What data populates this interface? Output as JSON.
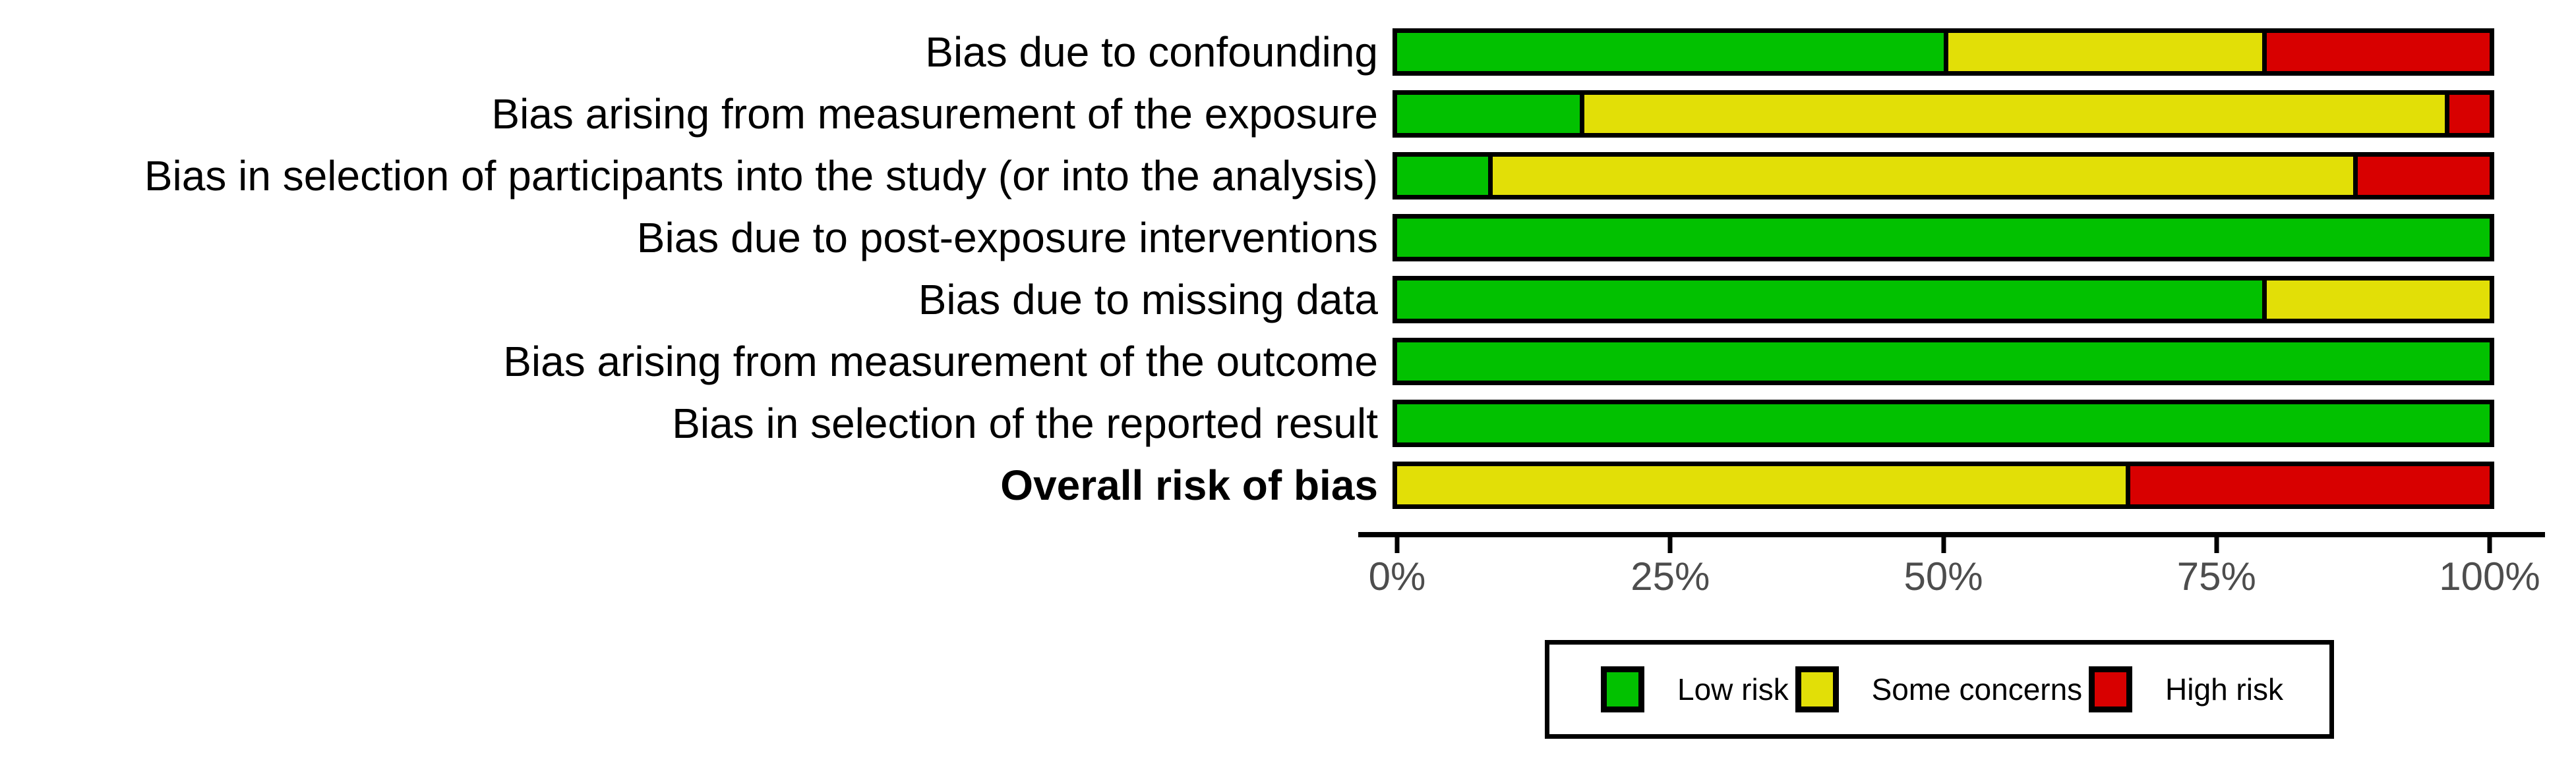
{
  "chart_data": {
    "type": "bar",
    "orientation": "horizontal_stacked",
    "unit": "percent_of_studies",
    "title": "",
    "xlabel": "",
    "ylabel": "",
    "xlim": [
      0,
      100
    ],
    "grid": false,
    "legend_position": "bottom",
    "x_ticks": [
      "0%",
      "25%",
      "50%",
      "75%",
      "100%"
    ],
    "categories": [
      {
        "label": "Bias due to confounding",
        "bold": false
      },
      {
        "label": "Bias arising from measurement of the exposure",
        "bold": false
      },
      {
        "label": "Bias in selection of participants into the study (or into the analysis)",
        "bold": false
      },
      {
        "label": "Bias due to post-exposure interventions",
        "bold": false
      },
      {
        "label": "Bias due to missing data",
        "bold": false
      },
      {
        "label": "Bias arising from measurement of the outcome",
        "bold": false
      },
      {
        "label": "Bias in selection of the reported result",
        "bold": false
      },
      {
        "label": "Overall risk of bias",
        "bold": true
      }
    ],
    "series": [
      {
        "name": "Low risk",
        "color": "#02C100",
        "values": [
          50.0,
          16.7,
          8.3,
          100.0,
          79.2,
          100.0,
          100.0,
          0.0
        ]
      },
      {
        "name": "Some concerns",
        "color": "#E2DF07",
        "values": [
          29.2,
          79.2,
          79.2,
          0.0,
          20.8,
          0.0,
          0.0,
          66.7
        ]
      },
      {
        "name": "High risk",
        "color": "#D80000",
        "values": [
          20.8,
          4.1,
          12.5,
          0.0,
          0.0,
          0.0,
          0.0,
          33.3
        ]
      }
    ]
  },
  "colors": {
    "low_risk": "#02C100",
    "some_concerns": "#E2DF07",
    "high_risk": "#D80000",
    "bar_border": "#000000",
    "axis_text": "#4d4d4d",
    "label_text": "#000000"
  }
}
